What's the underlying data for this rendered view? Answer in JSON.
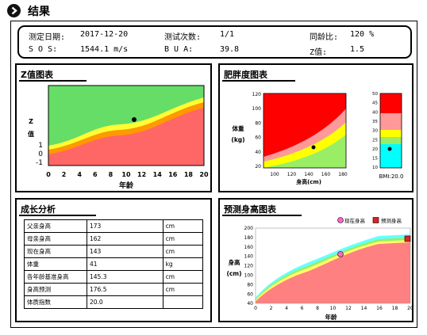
{
  "header": {
    "title": "结果",
    "icon": "chevron-right-circle-icon"
  },
  "info": {
    "date_label": "测定日期:",
    "date_value": "2017-12-20",
    "count_label": "测试次数:",
    "count_value": "1/1",
    "peer_label": "同龄比:",
    "peer_value": "120 %",
    "sos_label": "S O S:",
    "sos_value": "1544.1 m/s",
    "bua_label": "B U A:",
    "bua_value": "39.8",
    "z_label": "Z值:",
    "z_value": "1.5"
  },
  "z_chart": {
    "title": "Z值图表",
    "ylabel_chars": [
      "Z",
      "值"
    ],
    "xlabel": "年龄",
    "yticks": [
      "1",
      "0",
      "-1"
    ],
    "xticks": [
      "0",
      "2",
      "4",
      "6",
      "8",
      "10",
      "12",
      "14",
      "16",
      "18",
      "20"
    ],
    "colors": {
      "top": "#66dd66",
      "yellow": "#ffff33",
      "orange": "#ff9900",
      "red": "#ff6666"
    }
  },
  "obesity_chart": {
    "title": "肥胖度图表",
    "ylabel_chars": [
      "体重",
      "(kg)"
    ],
    "xlabel": "身高(cm)",
    "yticks": [
      "120",
      "100",
      "80",
      "60",
      "40",
      "20"
    ],
    "xticks": [
      "100",
      "120",
      "140",
      "160",
      "180"
    ],
    "bmi_ticks": [
      "50",
      "45",
      "40",
      "35",
      "30",
      "25",
      "20",
      "15",
      "10"
    ],
    "bmi_label": "BMI:20.0",
    "colors": {
      "red": "#ff0000",
      "pink": "#ff9999",
      "yellow": "#ffff00",
      "green": "#99ee66",
      "cyan": "#00ffff"
    }
  },
  "growth": {
    "title": "成长分析",
    "rows": [
      {
        "label": "父亲身高",
        "value": "173",
        "unit": "cm"
      },
      {
        "label": "母亲身高",
        "value": "162",
        "unit": "cm"
      },
      {
        "label": "现在身高",
        "value": "143",
        "unit": "cm"
      },
      {
        "label": "体重",
        "value": "41",
        "unit": "kg"
      },
      {
        "label": "各年龄基准身高",
        "value": "145.3",
        "unit": "cm"
      },
      {
        "label": "身高预测",
        "value": "176.5",
        "unit": "cm"
      },
      {
        "label": "体质指数",
        "value": "20.0",
        "unit": ""
      }
    ]
  },
  "height_chart": {
    "title": "预测身高图表",
    "legend_current": "现在身高",
    "legend_predicted": "预测身高",
    "ylabel_chars": [
      "身高",
      "(cm)"
    ],
    "xlabel": "年龄",
    "yticks": [
      "200",
      "180",
      "160",
      "140",
      "120",
      "100",
      "80",
      "60",
      "40"
    ],
    "xticks": [
      "0",
      "2",
      "4",
      "6",
      "8",
      "10",
      "12",
      "14",
      "16",
      "18",
      "20"
    ],
    "colors": {
      "band": "#66ffff",
      "green": "#99ee66",
      "yellow": "#ffff66",
      "red": "#ff8080",
      "current": "#ff66cc",
      "predicted": "#dd2222"
    }
  }
}
